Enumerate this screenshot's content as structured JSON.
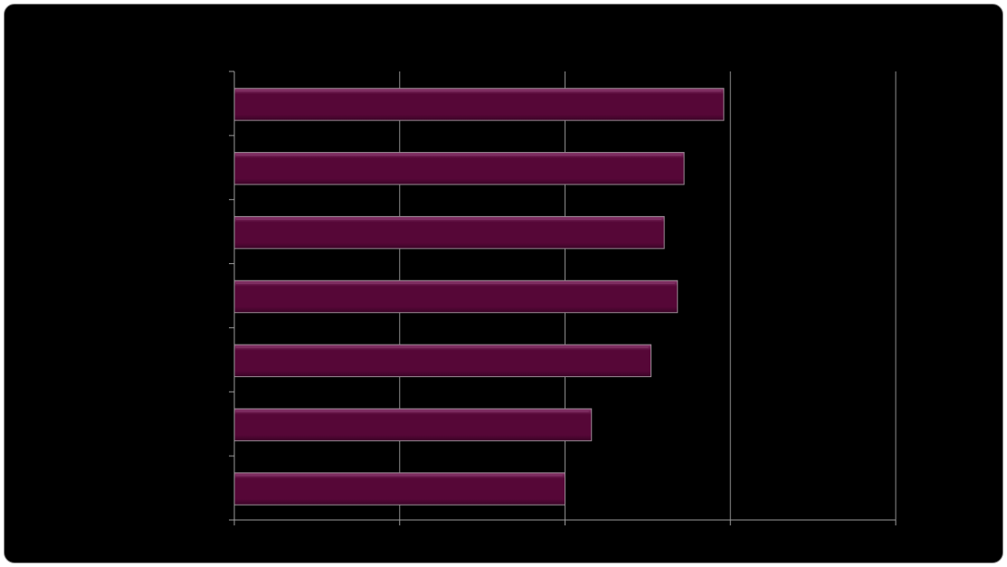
{
  "chart_data": {
    "type": "bar",
    "orientation": "horizontal",
    "categories": [
      "",
      "",
      "",
      "",
      "",
      "",
      ""
    ],
    "values": [
      2.96,
      2.72,
      2.6,
      2.68,
      2.52,
      2.16,
      2.0
    ],
    "title": "",
    "xlabel": "",
    "ylabel": "",
    "xlim": [
      0,
      4
    ],
    "xticks": [
      0,
      1,
      2,
      3,
      4
    ],
    "grid": true,
    "legend": "none",
    "colors": {
      "background": "#000000",
      "bar_fill": "#560737",
      "bar_highlight": "#8a3a6e",
      "bar_edge": "#9a8a94",
      "grid": "#8c8c8c",
      "axis": "#9a9a9a"
    }
  }
}
